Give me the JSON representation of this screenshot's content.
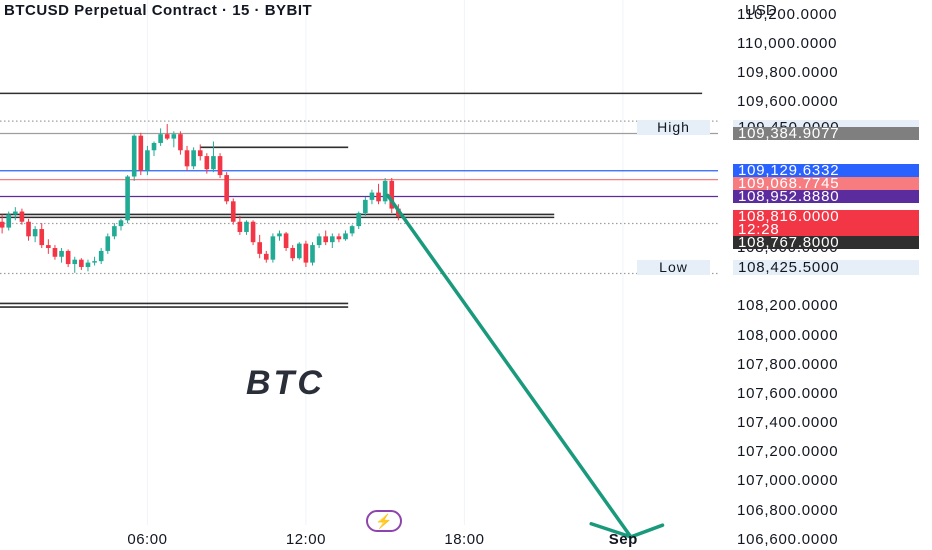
{
  "header": {
    "title": "BTCUSD Perpetual Contract · 15 · BYBIT",
    "currency": "USD"
  },
  "colors": {
    "up": "#22ab94",
    "down": "#f23645",
    "blue_line": "#2962ff",
    "purple_line": "#5b2c9e",
    "red_line": "#f77c80",
    "projection": "#1a9a7c"
  },
  "price_tags": [
    {
      "label": "109,384.9077",
      "price": 109384.9077,
      "color": "#7f7f7f"
    },
    {
      "label": "109,129.6332",
      "price": 109129.6332,
      "color": "#2962ff"
    },
    {
      "label": "109,068.7745",
      "price": 109068.7745,
      "color": "#f77c80"
    },
    {
      "label": "108,952.8880",
      "price": 108952.888,
      "color": "#5b2c9e"
    },
    {
      "label": "108,816.0000",
      "price": 108816.0,
      "color": "#f23645"
    },
    {
      "label": "12:28",
      "price": 108735.0,
      "color": "#f23645"
    },
    {
      "label": "108,767.8000",
      "price": 108767.8,
      "color": "#2f2f2f"
    }
  ],
  "high_low": {
    "high_label": "High",
    "high_value": "109,450.0000",
    "low_label": "Low",
    "low_value": "108,425.5000"
  },
  "annotation": {
    "text": "BTC",
    "icon": "lightning-bolt-icon"
  },
  "chart_data": {
    "type": "candlestick",
    "title": "BTCUSD Perpetual Contract · 15 · BYBIT",
    "y_unit": "USD",
    "ylim": [
      106530,
      110300
    ],
    "y_ticks": [
      {
        "value": 110200,
        "label": "110,200.0000"
      },
      {
        "value": 110000,
        "label": "110,000.0000"
      },
      {
        "value": 109800,
        "label": "109,800.0000"
      },
      {
        "value": 109600,
        "label": "109,600.0000"
      },
      {
        "value": 108600,
        "label": "108,600.0000"
      },
      {
        "value": 108200,
        "label": "108,200.0000"
      },
      {
        "value": 108000,
        "label": "108,000.0000"
      },
      {
        "value": 107800,
        "label": "107,800.0000"
      },
      {
        "value": 107600,
        "label": "107,600.0000"
      },
      {
        "value": 107400,
        "label": "107,400.0000"
      },
      {
        "value": 107200,
        "label": "107,200.0000"
      },
      {
        "value": 107000,
        "label": "107,000.0000"
      },
      {
        "value": 106800,
        "label": "106,800.0000"
      },
      {
        "value": 106600,
        "label": "106,600.0000"
      }
    ],
    "x_ticks": [
      {
        "value": 6.0,
        "label": "06:00"
      },
      {
        "value": 12.0,
        "label": "12:00"
      },
      {
        "value": 18.0,
        "label": "18:00"
      },
      {
        "value": 24.0,
        "label": "Sep"
      }
    ],
    "xlim": [
      0.42,
      27.6
    ],
    "candle_period_hours": 0.25,
    "candles": [
      {
        "t": 0.5,
        "o": 108780,
        "h": 108830,
        "l": 108700,
        "c": 108740
      },
      {
        "t": 0.75,
        "o": 108740,
        "h": 108850,
        "l": 108720,
        "c": 108830
      },
      {
        "t": 1.0,
        "o": 108830,
        "h": 108880,
        "l": 108790,
        "c": 108850
      },
      {
        "t": 1.25,
        "o": 108850,
        "h": 108870,
        "l": 108760,
        "c": 108780
      },
      {
        "t": 1.5,
        "o": 108780,
        "h": 108800,
        "l": 108650,
        "c": 108680
      },
      {
        "t": 1.75,
        "o": 108680,
        "h": 108750,
        "l": 108640,
        "c": 108730
      },
      {
        "t": 2.0,
        "o": 108730,
        "h": 108770,
        "l": 108600,
        "c": 108620
      },
      {
        "t": 2.25,
        "o": 108620,
        "h": 108660,
        "l": 108560,
        "c": 108600
      },
      {
        "t": 2.5,
        "o": 108600,
        "h": 108620,
        "l": 108520,
        "c": 108540
      },
      {
        "t": 2.75,
        "o": 108540,
        "h": 108600,
        "l": 108500,
        "c": 108580
      },
      {
        "t": 3.0,
        "o": 108580,
        "h": 108590,
        "l": 108470,
        "c": 108490
      },
      {
        "t": 3.25,
        "o": 108490,
        "h": 108540,
        "l": 108430,
        "c": 108520
      },
      {
        "t": 3.5,
        "o": 108520,
        "h": 108530,
        "l": 108450,
        "c": 108470
      },
      {
        "t": 3.75,
        "o": 108470,
        "h": 108520,
        "l": 108440,
        "c": 108500
      },
      {
        "t": 4.0,
        "o": 108500,
        "h": 108540,
        "l": 108480,
        "c": 108510
      },
      {
        "t": 4.25,
        "o": 108510,
        "h": 108600,
        "l": 108490,
        "c": 108580
      },
      {
        "t": 4.5,
        "o": 108580,
        "h": 108700,
        "l": 108560,
        "c": 108680
      },
      {
        "t": 4.75,
        "o": 108680,
        "h": 108770,
        "l": 108660,
        "c": 108750
      },
      {
        "t": 5.0,
        "o": 108750,
        "h": 108800,
        "l": 108720,
        "c": 108790
      },
      {
        "t": 5.25,
        "o": 108790,
        "h": 109100,
        "l": 108770,
        "c": 109090
      },
      {
        "t": 5.5,
        "o": 109090,
        "h": 109380,
        "l": 109060,
        "c": 109370
      },
      {
        "t": 5.75,
        "o": 109370,
        "h": 109390,
        "l": 109100,
        "c": 109130
      },
      {
        "t": 6.0,
        "o": 109130,
        "h": 109300,
        "l": 109100,
        "c": 109270
      },
      {
        "t": 6.25,
        "o": 109270,
        "h": 109330,
        "l": 109230,
        "c": 109320
      },
      {
        "t": 6.5,
        "o": 109320,
        "h": 109420,
        "l": 109300,
        "c": 109380
      },
      {
        "t": 6.75,
        "o": 109380,
        "h": 109450,
        "l": 109340,
        "c": 109350
      },
      {
        "t": 7.0,
        "o": 109350,
        "h": 109400,
        "l": 109290,
        "c": 109380
      },
      {
        "t": 7.25,
        "o": 109380,
        "h": 109400,
        "l": 109240,
        "c": 109270
      },
      {
        "t": 7.5,
        "o": 109270,
        "h": 109300,
        "l": 109130,
        "c": 109160
      },
      {
        "t": 7.75,
        "o": 109160,
        "h": 109290,
        "l": 109140,
        "c": 109270
      },
      {
        "t": 8.0,
        "o": 109270,
        "h": 109310,
        "l": 109200,
        "c": 109230
      },
      {
        "t": 8.25,
        "o": 109230,
        "h": 109250,
        "l": 109110,
        "c": 109140
      },
      {
        "t": 8.5,
        "o": 109140,
        "h": 109330,
        "l": 109120,
        "c": 109230
      },
      {
        "t": 8.75,
        "o": 109230,
        "h": 109250,
        "l": 109080,
        "c": 109100
      },
      {
        "t": 9.0,
        "o": 109100,
        "h": 109120,
        "l": 108900,
        "c": 108920
      },
      {
        "t": 9.25,
        "o": 108920,
        "h": 108940,
        "l": 108760,
        "c": 108780
      },
      {
        "t": 9.5,
        "o": 108780,
        "h": 108820,
        "l": 108690,
        "c": 108710
      },
      {
        "t": 9.75,
        "o": 108710,
        "h": 108790,
        "l": 108690,
        "c": 108780
      },
      {
        "t": 10.0,
        "o": 108780,
        "h": 108790,
        "l": 108620,
        "c": 108640
      },
      {
        "t": 10.25,
        "o": 108640,
        "h": 108690,
        "l": 108530,
        "c": 108560
      },
      {
        "t": 10.5,
        "o": 108560,
        "h": 108580,
        "l": 108500,
        "c": 108520
      },
      {
        "t": 10.75,
        "o": 108520,
        "h": 108700,
        "l": 108500,
        "c": 108680
      },
      {
        "t": 11.0,
        "o": 108680,
        "h": 108720,
        "l": 108650,
        "c": 108700
      },
      {
        "t": 11.25,
        "o": 108700,
        "h": 108710,
        "l": 108580,
        "c": 108600
      },
      {
        "t": 11.5,
        "o": 108600,
        "h": 108620,
        "l": 108510,
        "c": 108530
      },
      {
        "t": 11.75,
        "o": 108530,
        "h": 108640,
        "l": 108520,
        "c": 108630
      },
      {
        "t": 12.0,
        "o": 108630,
        "h": 108650,
        "l": 108470,
        "c": 108500
      },
      {
        "t": 12.25,
        "o": 108500,
        "h": 108640,
        "l": 108480,
        "c": 108620
      },
      {
        "t": 12.5,
        "o": 108620,
        "h": 108700,
        "l": 108600,
        "c": 108680
      },
      {
        "t": 12.75,
        "o": 108680,
        "h": 108720,
        "l": 108620,
        "c": 108640
      },
      {
        "t": 13.0,
        "o": 108640,
        "h": 108700,
        "l": 108600,
        "c": 108680
      },
      {
        "t": 13.25,
        "o": 108680,
        "h": 108700,
        "l": 108640,
        "c": 108660
      },
      {
        "t": 13.5,
        "o": 108660,
        "h": 108720,
        "l": 108650,
        "c": 108700
      },
      {
        "t": 13.75,
        "o": 108700,
        "h": 108760,
        "l": 108680,
        "c": 108750
      },
      {
        "t": 14.0,
        "o": 108750,
        "h": 108850,
        "l": 108730,
        "c": 108840
      },
      {
        "t": 14.25,
        "o": 108840,
        "h": 108950,
        "l": 108820,
        "c": 108930
      },
      {
        "t": 14.5,
        "o": 108930,
        "h": 109000,
        "l": 108900,
        "c": 108980
      },
      {
        "t": 14.75,
        "o": 108980,
        "h": 109040,
        "l": 108900,
        "c": 108920
      },
      {
        "t": 15.0,
        "o": 108920,
        "h": 109080,
        "l": 108900,
        "c": 109060
      },
      {
        "t": 15.25,
        "o": 109060,
        "h": 109080,
        "l": 108840,
        "c": 108870
      },
      {
        "t": 15.5,
        "o": 108870,
        "h": 108900,
        "l": 108790,
        "c": 108816
      }
    ],
    "horizontal_lines": [
      {
        "price": 109660,
        "x_start": 0.42,
        "x_end": 27.0,
        "color": "#2f2f2f",
        "style": "solid"
      },
      {
        "price": 109470,
        "x_start": 0.42,
        "x_end": 27.6,
        "color": "#9e9e9e",
        "style": "dotted"
      },
      {
        "price": 109384.9077,
        "x_start": 0.42,
        "x_end": 27.6,
        "color": "#9e9e9e",
        "style": "solid"
      },
      {
        "price": 109290,
        "x_start": 8.0,
        "x_end": 13.6,
        "color": "#2f2f2f",
        "style": "solid"
      },
      {
        "price": 109129.6332,
        "x_start": 0.42,
        "x_end": 27.6,
        "color": "#2962ff",
        "style": "solid"
      },
      {
        "price": 109068.7745,
        "x_start": 0.42,
        "x_end": 27.6,
        "color": "#f77c80",
        "style": "solid"
      },
      {
        "price": 108952.888,
        "x_start": 0.42,
        "x_end": 27.6,
        "color": "#5b2c9e",
        "style": "solid"
      },
      {
        "price": 108830,
        "x_start": 0.42,
        "x_end": 21.4,
        "color": "#2f2f2f",
        "style": "solid"
      },
      {
        "price": 108810,
        "x_start": 0.42,
        "x_end": 21.4,
        "color": "#2f2f2f",
        "style": "solid"
      },
      {
        "price": 108767.8,
        "x_start": 0.42,
        "x_end": 27.6,
        "color": "#9e9e9e",
        "style": "dotted"
      },
      {
        "price": 108425.5,
        "x_start": 0.42,
        "x_end": 27.6,
        "color": "#9e9e9e",
        "style": "dotted"
      },
      {
        "price": 108220,
        "x_start": 0.42,
        "x_end": 13.6,
        "color": "#2f2f2f",
        "style": "solid"
      },
      {
        "price": 108195,
        "x_start": 0.42,
        "x_end": 13.6,
        "color": "#2f2f2f",
        "style": "solid"
      }
    ],
    "projection_arrow": {
      "from": {
        "t": 15.1,
        "price": 108960
      },
      "to": {
        "t": 24.3,
        "price": 106620
      },
      "head_left": {
        "t": 22.8,
        "price": 106710
      },
      "head_right": {
        "t": 25.5,
        "price": 106700
      }
    }
  }
}
